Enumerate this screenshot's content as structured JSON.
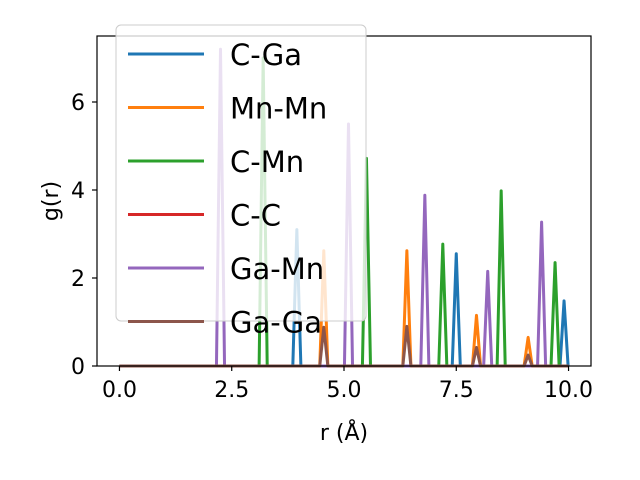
{
  "chart_data": {
    "type": "line",
    "xlabel": "r (Å)",
    "ylabel": "g(r)",
    "xlim": [
      -0.5,
      10.5
    ],
    "ylim": [
      0,
      7.5
    ],
    "xticks": [
      0.0,
      2.5,
      5.0,
      7.5,
      10.0
    ],
    "xtick_labels": [
      "0.0",
      "2.5",
      "5.0",
      "7.5",
      "10.0"
    ],
    "yticks": [
      0,
      2,
      4,
      6
    ],
    "ytick_labels": [
      "0",
      "2",
      "4",
      "6"
    ],
    "grid": false,
    "legend_position": "upper-left",
    "series": [
      {
        "name": "C-Ga",
        "color": "#1f77b4",
        "peaks": [
          [
            3.95,
            3.1
          ],
          [
            7.5,
            2.55
          ],
          [
            9.9,
            1.48
          ]
        ]
      },
      {
        "name": "Mn-Mn",
        "color": "#ff7f0e",
        "peaks": [
          [
            4.55,
            2.62
          ],
          [
            6.4,
            2.62
          ],
          [
            7.95,
            1.15
          ],
          [
            9.1,
            0.65
          ]
        ]
      },
      {
        "name": "C-Mn",
        "color": "#2ca02c",
        "peaks": [
          [
            3.2,
            7.0
          ],
          [
            5.5,
            4.72
          ],
          [
            7.2,
            2.77
          ],
          [
            8.5,
            3.98
          ],
          [
            9.7,
            2.35
          ]
        ]
      },
      {
        "name": "C-C",
        "color": "#d62728",
        "peaks": []
      },
      {
        "name": "Ga-Mn",
        "color": "#9467bd",
        "peaks": [
          [
            2.25,
            7.2
          ],
          [
            5.1,
            5.5
          ],
          [
            6.8,
            3.88
          ],
          [
            8.2,
            2.15
          ],
          [
            9.4,
            3.27
          ]
        ]
      },
      {
        "name": "Ga-Ga",
        "color": "#8c564b",
        "peaks": [
          [
            4.55,
            0.88
          ],
          [
            6.4,
            0.9
          ],
          [
            7.95,
            0.42
          ],
          [
            9.1,
            0.25
          ]
        ]
      }
    ]
  }
}
